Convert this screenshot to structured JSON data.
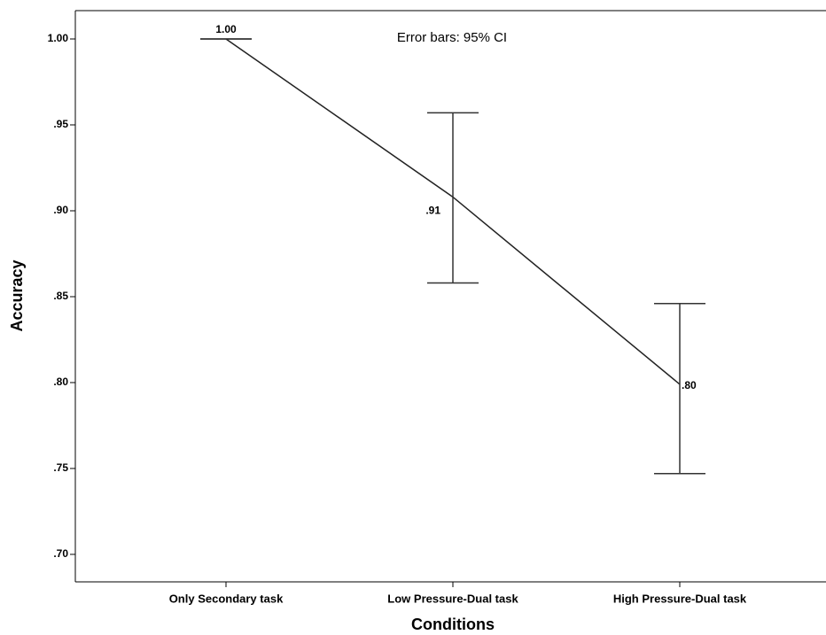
{
  "chart_data": {
    "type": "line",
    "annotation": "Error bars: 95% CI",
    "x_label": "Conditions",
    "y_label": "Accuracy",
    "categories": [
      "Only Secondary task",
      "Low Pressure-Dual task",
      "High Pressure-Dual task"
    ],
    "series": [
      {
        "color": "#222222",
        "values": [
          1.0,
          0.908,
          0.799
        ],
        "value_labels": [
          "1.00",
          ".91",
          ".80"
        ],
        "error_lower": [
          1.0,
          0.858,
          0.747
        ],
        "error_upper": [
          1.0,
          0.957,
          0.846
        ]
      }
    ],
    "ylim": [
      0.684,
      1.0165
    ],
    "yticks": [
      {
        "value": 0.7,
        "label": ".70"
      },
      {
        "value": 0.75,
        "label": ".75"
      },
      {
        "value": 0.8,
        "label": ".80"
      },
      {
        "value": 0.85,
        "label": ".85"
      },
      {
        "value": 0.9,
        "label": ".90"
      },
      {
        "value": 0.95,
        "label": ".95"
      },
      {
        "value": 1.0,
        "label": "1.00"
      }
    ]
  }
}
